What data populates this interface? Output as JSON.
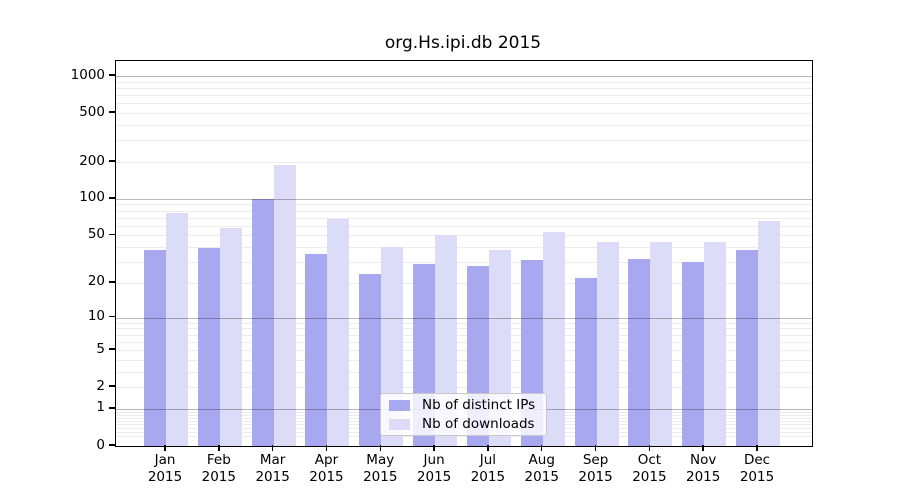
{
  "title": "org.Hs.ipi.db 2015",
  "chart_data": {
    "type": "bar",
    "title": "org.Hs.ipi.db 2015",
    "categories": [
      "Jan",
      "Feb",
      "Mar",
      "Apr",
      "May",
      "Jun",
      "Jul",
      "Aug",
      "Sep",
      "Oct",
      "Nov",
      "Dec"
    ],
    "category_year": "2015",
    "series": [
      {
        "name": "Nb of distinct IPs",
        "color": "#a8a8f0",
        "values": [
          38,
          39,
          100,
          35,
          24,
          29,
          28,
          31,
          22,
          32,
          30,
          38
        ]
      },
      {
        "name": "Nb of downloads",
        "color": "#dcdcf8",
        "values": [
          76,
          58,
          190,
          68,
          40,
          50,
          38,
          53,
          44,
          44,
          44,
          66
        ]
      }
    ],
    "y_scale": "log10(1+x)",
    "y_ticks": [
      0,
      1,
      2,
      5,
      10,
      20,
      50,
      100,
      200,
      500,
      1000
    ],
    "ylim": [
      0,
      1320
    ],
    "grid": true,
    "legend_position": "inside-bottom-center"
  }
}
